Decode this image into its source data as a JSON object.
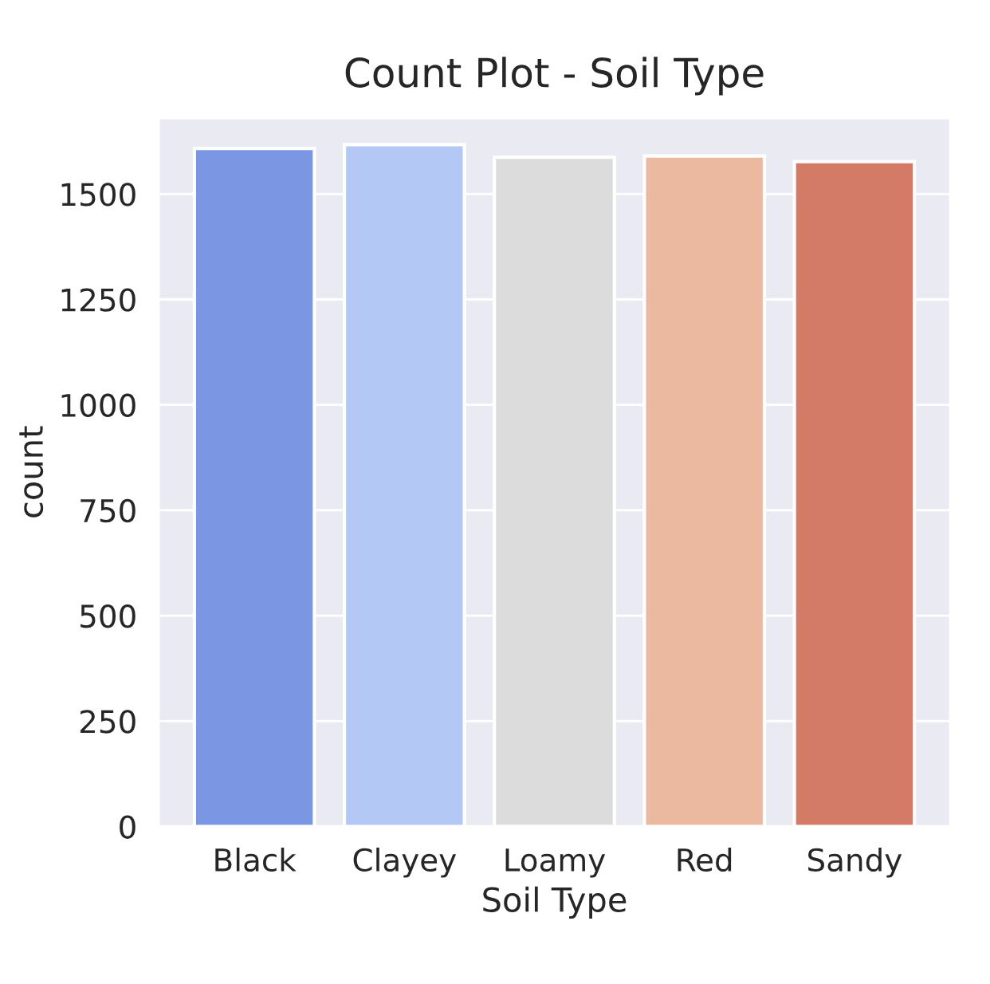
{
  "chart_data": {
    "type": "bar",
    "title": "Count Plot - Soil Type",
    "xlabel": "Soil Type",
    "ylabel": "count",
    "categories": [
      "Black",
      "Clayey",
      "Loamy",
      "Red",
      "Sandy"
    ],
    "values": [
      1608,
      1617,
      1587,
      1590,
      1577
    ],
    "colors": [
      "#7b96e2",
      "#b3c8f4",
      "#dcdcdc",
      "#ebb9a0",
      "#d37b66"
    ],
    "ylim": [
      0,
      1680
    ],
    "yticks": [
      0,
      250,
      500,
      750,
      1000,
      1250,
      1500
    ],
    "grid": true
  }
}
